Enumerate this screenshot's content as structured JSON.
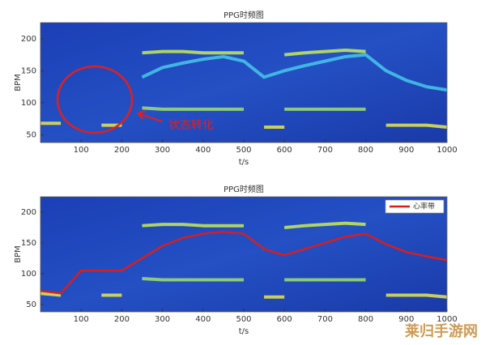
{
  "chart_data": [
    {
      "type": "line",
      "title": "PPG时频图",
      "xlabel": "t/s",
      "ylabel": "BPM",
      "x": [
        0,
        50,
        100,
        150,
        200,
        250,
        300,
        350,
        400,
        450,
        500,
        550,
        600,
        650,
        700,
        750,
        800,
        850,
        900,
        950,
        1000
      ],
      "xlim": [
        0,
        1000
      ],
      "xticks": [
        100,
        200,
        300,
        400,
        500,
        600,
        700,
        800,
        900,
        1000
      ],
      "ylim": [
        38,
        225
      ],
      "yticks": [
        50,
        100,
        150,
        200
      ],
      "annotation": "状态转化",
      "series": [
        {
          "color": "#c8ec52",
          "values": [
            null,
            null,
            null,
            null,
            null,
            178,
            180,
            180,
            178,
            178,
            178,
            null,
            175,
            178,
            180,
            182,
            180,
            null,
            null,
            null,
            null
          ]
        },
        {
          "color": "#46c8ea",
          "values": [
            null,
            null,
            null,
            null,
            null,
            140,
            155,
            162,
            168,
            172,
            165,
            140,
            150,
            158,
            165,
            172,
            175,
            150,
            135,
            125,
            120
          ]
        },
        {
          "color": "#9fe070",
          "values": [
            null,
            null,
            null,
            null,
            null,
            92,
            90,
            90,
            90,
            90,
            90,
            null,
            90,
            90,
            90,
            90,
            90,
            null,
            null,
            null,
            null
          ]
        },
        {
          "color": "#e8e84a",
          "values": [
            68,
            68,
            null,
            65,
            65,
            null,
            null,
            null,
            null,
            null,
            null,
            62,
            62,
            null,
            null,
            null,
            null,
            65,
            65,
            65,
            62
          ]
        }
      ]
    },
    {
      "type": "line",
      "title": "PPG时频图",
      "xlabel": "t/s",
      "ylabel": "BPM",
      "x": [
        0,
        50,
        100,
        150,
        200,
        250,
        300,
        350,
        400,
        450,
        500,
        550,
        600,
        650,
        700,
        750,
        800,
        850,
        900,
        950,
        1000
      ],
      "xlim": [
        0,
        1000
      ],
      "xticks": [
        100,
        200,
        300,
        400,
        500,
        600,
        700,
        800,
        900,
        1000
      ],
      "ylim": [
        38,
        225
      ],
      "yticks": [
        50,
        100,
        150,
        200
      ],
      "legend": "upper right",
      "series": [
        {
          "color": "#c8ec52",
          "values": [
            null,
            null,
            null,
            null,
            null,
            178,
            180,
            180,
            178,
            178,
            178,
            null,
            175,
            178,
            180,
            182,
            180,
            null,
            null,
            null,
            null
          ]
        },
        {
          "color": "#9fe070",
          "values": [
            null,
            null,
            null,
            null,
            null,
            92,
            90,
            90,
            90,
            90,
            90,
            null,
            90,
            90,
            90,
            90,
            90,
            null,
            null,
            null,
            null
          ]
        },
        {
          "color": "#e8e84a",
          "values": [
            68,
            65,
            null,
            65,
            65,
            null,
            null,
            null,
            null,
            null,
            null,
            62,
            62,
            null,
            null,
            null,
            null,
            65,
            65,
            65,
            62
          ]
        },
        {
          "name": "心率带",
          "color": "#d81e1e",
          "values": [
            72,
            68,
            105,
            105,
            105,
            125,
            145,
            158,
            165,
            168,
            165,
            140,
            130,
            140,
            150,
            160,
            165,
            148,
            135,
            128,
            122
          ]
        }
      ]
    }
  ],
  "watermark": "莱归手游网"
}
